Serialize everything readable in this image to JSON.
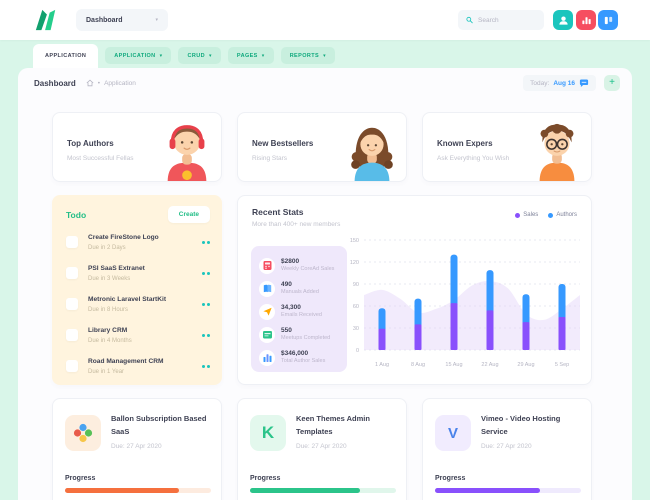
{
  "header": {
    "workspace_selector": {
      "label": "Dashboard"
    },
    "search": {
      "placeholder": "Search"
    },
    "actions": [
      {
        "icon": "user-icon",
        "color": "#1BC5BD"
      },
      {
        "icon": "bar-chart-icon",
        "color": "#F64E60"
      },
      {
        "icon": "columns-icon",
        "color": "#3699FF"
      }
    ]
  },
  "tabs": {
    "active": "APPLICATION",
    "dropdowns": [
      {
        "label": "APPLICATION"
      },
      {
        "label": "CRUD"
      },
      {
        "label": "PAGES"
      },
      {
        "label": "REPORTS"
      }
    ]
  },
  "toolbar": {
    "title": "Dashboard",
    "breadcrumb": "Application",
    "today_label": "Today:",
    "today_value": "Aug 16",
    "add_button": "+"
  },
  "info_cards": [
    {
      "title": "Top Authors",
      "subtitle": "Most Successful Fellas",
      "avatar": "boy-headphones"
    },
    {
      "title": "New Bestsellers",
      "subtitle": "Rising Stars",
      "avatar": "girl-brown-hair"
    },
    {
      "title": "Known Expers",
      "subtitle": "Ask Everything You Wish",
      "avatar": "boy-glasses"
    }
  ],
  "todo": {
    "title": "Todo",
    "create_label": "Create",
    "items": [
      {
        "title": "Create FireStone Logo",
        "due": "Due in 2 Days"
      },
      {
        "title": "PSI SaaS Extranet",
        "due": "Due in 3 Weeks"
      },
      {
        "title": "Metronic Laravel StartKit",
        "due": "Due in 8 Hours"
      },
      {
        "title": "Library CRM",
        "due": "Due in 4 Months"
      },
      {
        "title": "Road Management CRM",
        "due": "Due in 1 Year"
      }
    ]
  },
  "recent_stats": {
    "title": "Recent Stats",
    "subtitle": "More than 400+ new members",
    "legend": [
      {
        "label": "Sales",
        "color": "#8950FC"
      },
      {
        "label": "Authors",
        "color": "#3699FF"
      }
    ],
    "stats": [
      {
        "value": "$2800",
        "label": "Weekly CoreAd Sales",
        "icon": "calculator-icon",
        "color": "#F64E60"
      },
      {
        "value": "490",
        "label": "Manuals Added",
        "icon": "book-icon",
        "color": "#3699FF"
      },
      {
        "value": "34,300",
        "label": "Emails Received",
        "icon": "send-icon",
        "color": "#FFA800"
      },
      {
        "value": "550",
        "label": "Meetups Completed",
        "icon": "calendar-icon",
        "color": "#2BC48A"
      },
      {
        "value": "$346,000",
        "label": "Total Author Sales",
        "icon": "chart-bars-icon",
        "color": "#3699FF"
      }
    ]
  },
  "chart_data": {
    "type": "bar",
    "stacked": true,
    "title": "Recent Stats",
    "categories": [
      "1 Aug",
      "8 Aug",
      "15 Aug",
      "22 Aug",
      "29 Aug",
      "5 Sep"
    ],
    "series": [
      {
        "name": "Sales",
        "color": "#8950FC",
        "values": [
          29,
          35,
          64,
          54,
          38,
          45
        ]
      },
      {
        "name": "Authors",
        "color": "#3699FF",
        "values": [
          28,
          35,
          66,
          55,
          38,
          45
        ]
      }
    ],
    "background_area": {
      "color": "#E2D3F8",
      "values": [
        75,
        82,
        70,
        51,
        56,
        68,
        88,
        94,
        84,
        49,
        41,
        56,
        75
      ]
    },
    "yticks": [
      0,
      30,
      60,
      90,
      120,
      150
    ],
    "ylim": [
      0,
      150
    ],
    "grid": "dashed-horizontal",
    "legend_position": "top-right"
  },
  "projects": [
    {
      "title": "Ballon Subscription Based SaaS",
      "due": "Due: 27 Apr 2020",
      "progress_label": "Progress",
      "progress_pct": 78,
      "color": "#F5703E",
      "icon": "clover-logo"
    },
    {
      "title": "Keen Themes Admin Templates",
      "due": "Due: 27 Apr 2020",
      "progress_label": "Progress",
      "progress_pct": 75,
      "color": "#2BC48A",
      "icon": "keen-logo"
    },
    {
      "title": "Vimeo - Video Hosting Service",
      "due": "Due: 27 Apr 2020",
      "progress_label": "Progress",
      "progress_pct": 72,
      "color": "#8950FC",
      "icon": "vimeo-logo"
    }
  ]
}
